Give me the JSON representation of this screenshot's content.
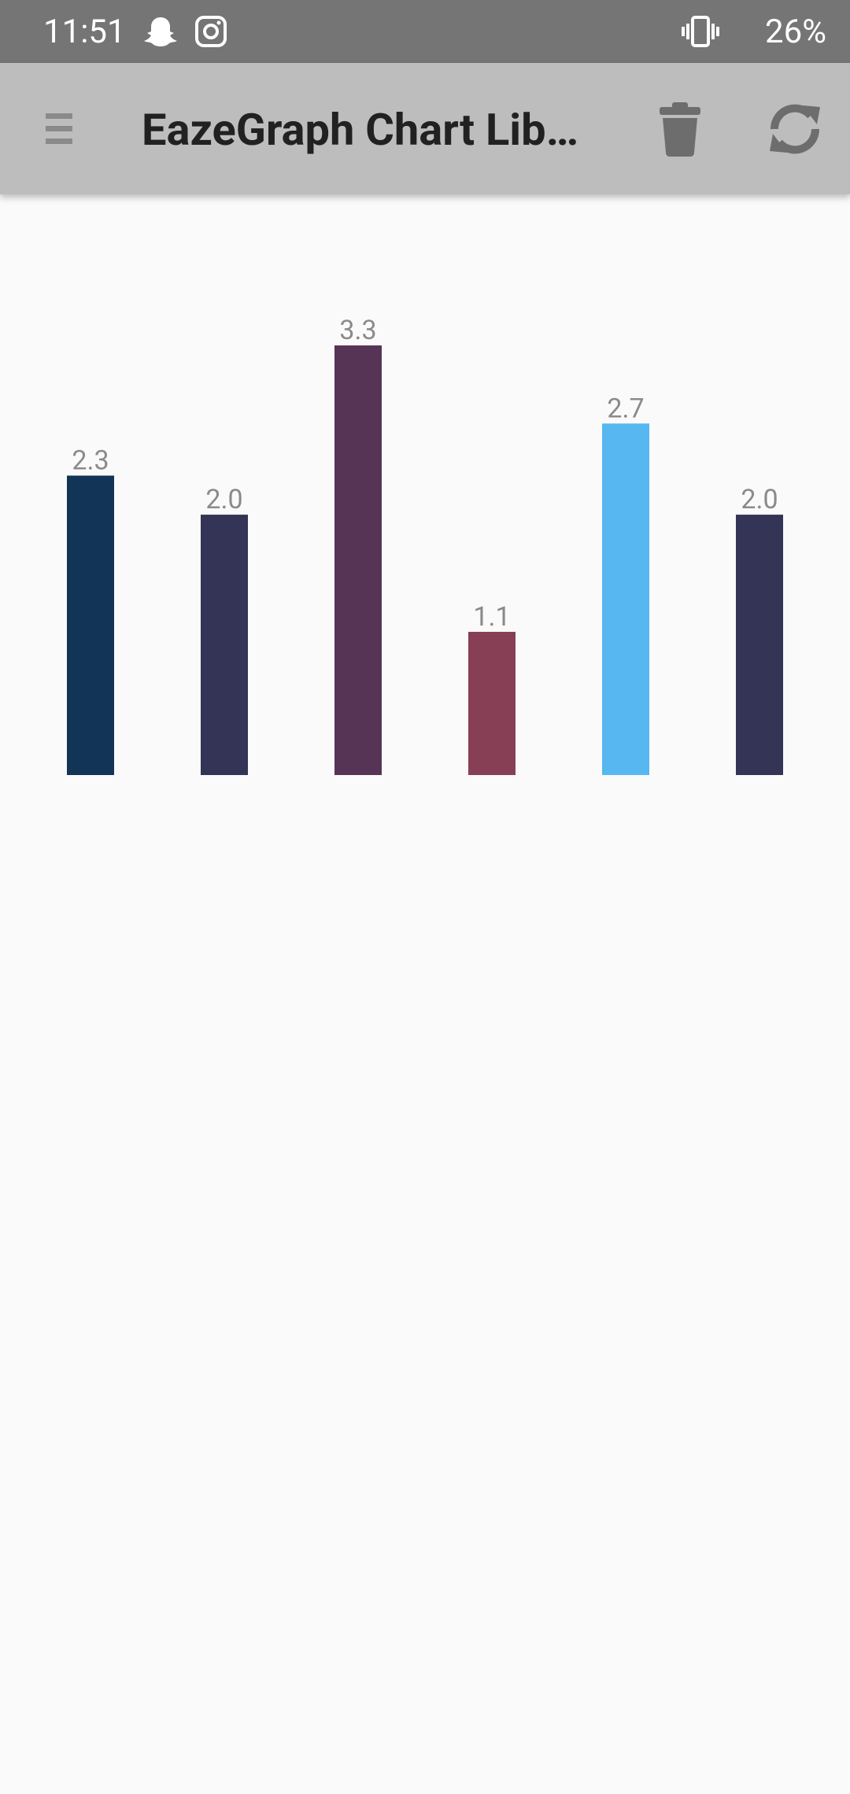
{
  "status_bar": {
    "time": "11:51",
    "battery": "26%"
  },
  "app_bar": {
    "title": "EazeGraph Chart Lib…"
  },
  "chart_data": {
    "type": "bar",
    "values": [
      2.3,
      2.0,
      3.3,
      1.1,
      2.7,
      2.0
    ],
    "value_labels": [
      "2.3",
      "2.0",
      "3.3",
      "1.1",
      "2.7",
      "2.0"
    ],
    "colors": [
      "#123456",
      "#343456",
      "#563456",
      "#873F56",
      "#56B7F1",
      "#343456"
    ]
  }
}
